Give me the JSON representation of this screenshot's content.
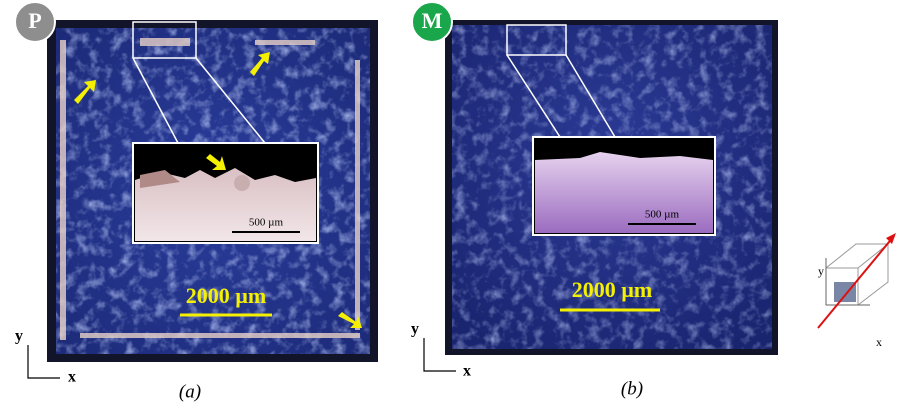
{
  "panels": [
    {
      "badge": "P",
      "inset_scale": "500 µm",
      "scale_bar": "2000 µm",
      "axis_y": "y",
      "axis_x": "x",
      "caption": "(a)"
    },
    {
      "badge": "M",
      "inset_scale": "500 µm",
      "scale_bar": "2000 µm",
      "axis_y": "y",
      "axis_x": "x",
      "caption": "(b)"
    }
  ],
  "orientation_icon": {
    "axis_y": "y",
    "axis_x": "x"
  }
}
